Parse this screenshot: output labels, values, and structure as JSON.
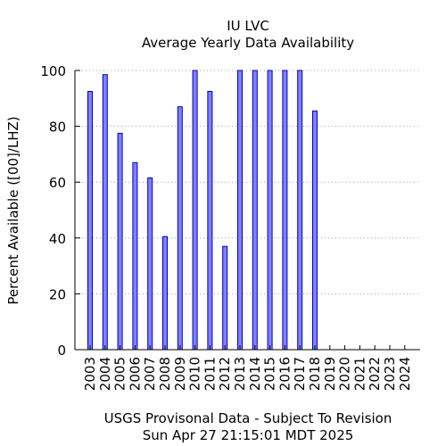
{
  "chart_data": {
    "type": "bar",
    "title": "IU LVC",
    "subtitle": "Average Yearly Data Availability",
    "ylabel": "Percent Available ([00]/LHZ)",
    "xlabel": "",
    "categories": [
      "2003",
      "2004",
      "2005",
      "2006",
      "2007",
      "2008",
      "2009",
      "2010",
      "2011",
      "2012",
      "2013",
      "2014",
      "2015",
      "2016",
      "2017",
      "2018",
      "2019",
      "2020",
      "2021",
      "2022",
      "2023",
      "2024"
    ],
    "values": [
      92.5,
      98.5,
      77.5,
      67,
      61.5,
      40.5,
      87,
      100,
      92.5,
      37,
      100,
      100,
      100,
      100,
      100,
      85.5,
      null,
      null,
      null,
      null,
      null,
      null
    ],
    "ylim": [
      0,
      100
    ],
    "yticks": [
      0,
      20,
      40,
      60,
      80,
      100
    ],
    "grid": true,
    "colors": {
      "bar_fill": "#8080ff",
      "bar_stroke": "#0000c0",
      "grid": "#a0a0a0"
    }
  },
  "footer": {
    "line1": "USGS Provisonal Data - Subject To Revision",
    "line2": "Sun Apr 27 21:15:01 MDT 2025"
  }
}
